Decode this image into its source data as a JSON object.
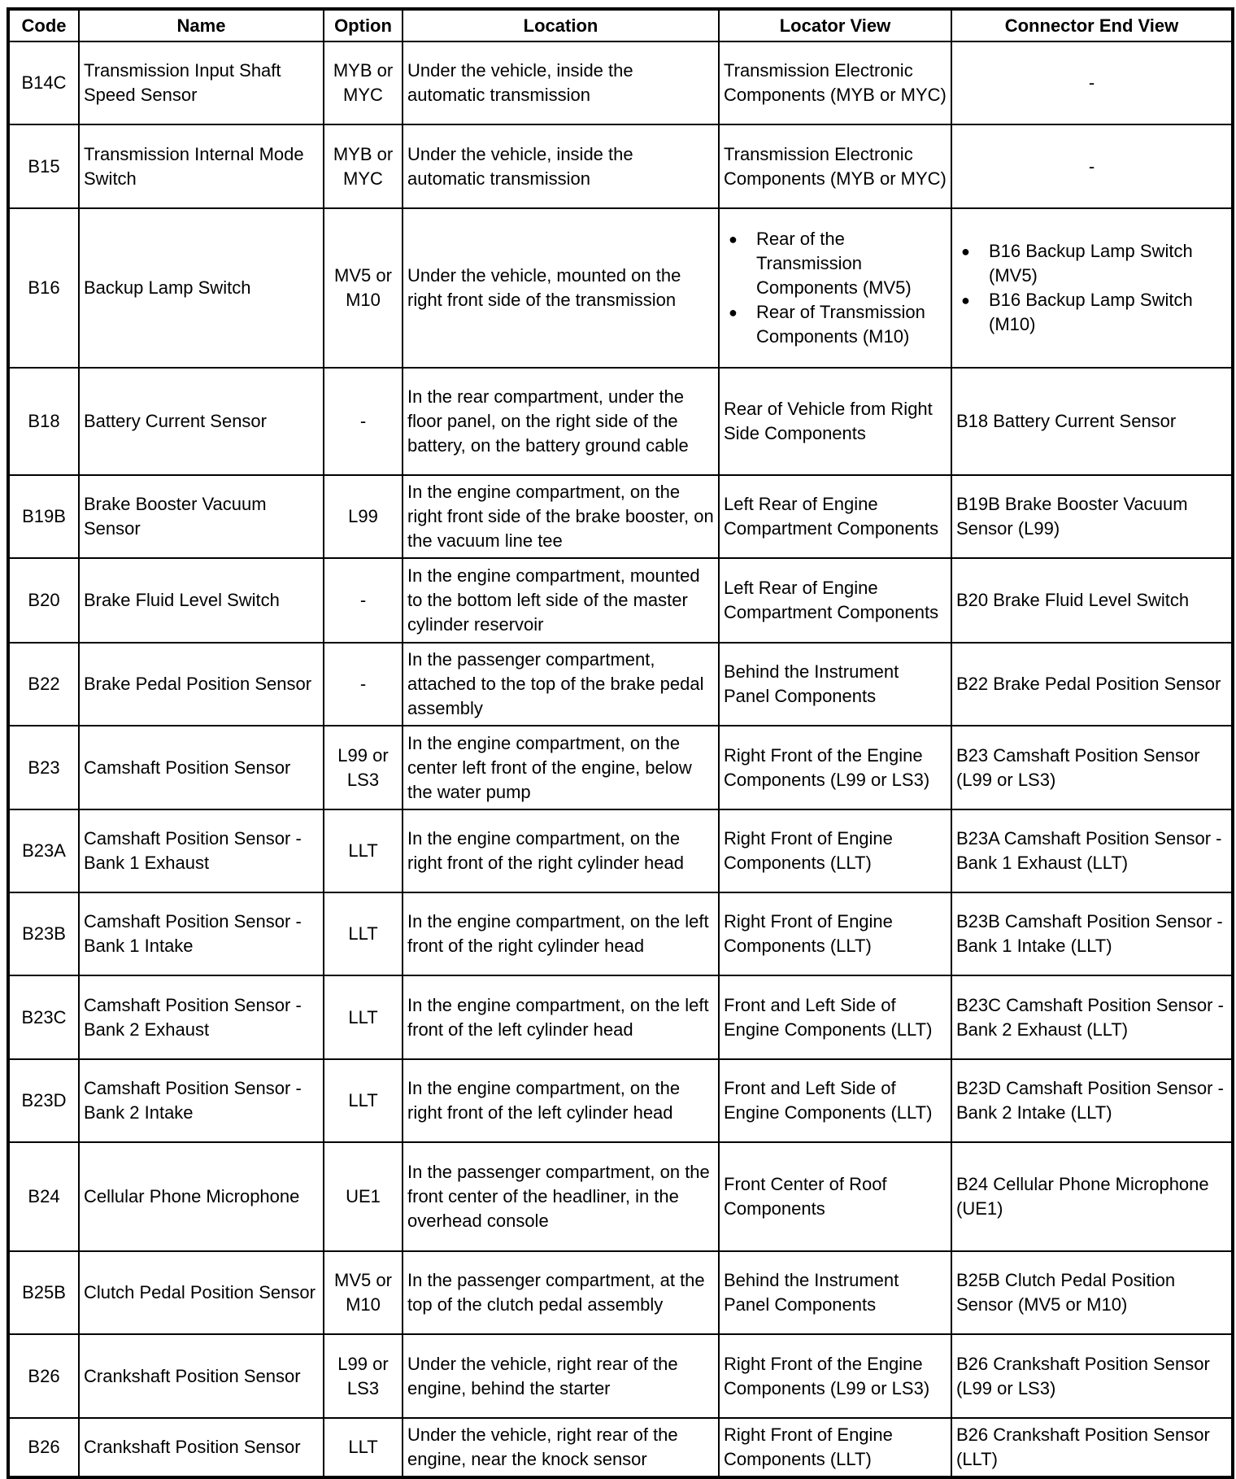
{
  "headers": [
    "Code",
    "Name",
    "Option",
    "Location",
    "Locator View",
    "Connector End View"
  ],
  "rows": [
    {
      "code": "B14C",
      "name": "Transmission Input Shaft Speed Sensor",
      "option": "MYB or MYC",
      "location": "Under the vehicle, inside the automatic transmission",
      "locator": [
        "Transmission Electronic Components (MYB or MYC)"
      ],
      "connector": [
        "-"
      ]
    },
    {
      "code": "B15",
      "name": "Transmission Internal Mode Switch",
      "option": "MYB or MYC",
      "location": "Under the vehicle, inside the automatic transmission",
      "locator": [
        "Transmission Electronic Components (MYB or MYC)"
      ],
      "connector": [
        "-"
      ]
    },
    {
      "code": "B16",
      "name": "Backup Lamp Switch",
      "option": "MV5 or M10",
      "location": "Under the vehicle, mounted on the right front side of the transmission",
      "locator": [
        "Rear of the Transmission Components (MV5)",
        "Rear of Transmission Components (M10)"
      ],
      "connector": [
        "B16 Backup Lamp Switch (MV5)",
        "B16 Backup Lamp Switch (M10)"
      ],
      "bullets": true
    },
    {
      "code": "B18",
      "name": "Battery Current Sensor",
      "option": "-",
      "location": "In the rear compartment, under the floor panel, on the right side of the battery, on the battery ground cable",
      "locator": [
        "Rear of Vehicle from Right Side Components"
      ],
      "connector": [
        "B18 Battery Current Sensor"
      ]
    },
    {
      "code": "B19B",
      "name": "Brake Booster Vacuum Sensor",
      "option": "L99",
      "location": "In the engine compartment, on the right front side of the brake booster, on the vacuum line tee",
      "locator": [
        "Left Rear of Engine Compartment Components"
      ],
      "connector": [
        "B19B Brake Booster Vacuum Sensor (L99)"
      ]
    },
    {
      "code": "B20",
      "name": "Brake Fluid Level Switch",
      "option": "-",
      "location": "In the engine compartment, mounted to the bottom left side of the master cylinder reservoir",
      "locator": [
        "Left Rear of Engine Compartment Components"
      ],
      "connector": [
        "B20 Brake Fluid Level Switch"
      ]
    },
    {
      "code": "B22",
      "name": "Brake Pedal Position Sensor",
      "option": "-",
      "location": "In the passenger compartment, attached to the top of the brake pedal assembly",
      "locator": [
        "Behind the Instrument Panel Components"
      ],
      "connector": [
        "B22 Brake Pedal Position Sensor"
      ]
    },
    {
      "code": "B23",
      "name": "Camshaft Position Sensor",
      "option": "L99 or LS3",
      "location": "In the engine compartment, on the center left front of the engine, below the water pump",
      "locator": [
        "Right Front of the Engine Components (L99 or LS3)"
      ],
      "connector": [
        "B23 Camshaft Position Sensor (L99 or LS3)"
      ]
    },
    {
      "code": "B23A",
      "name": "Camshaft Position Sensor - Bank 1 Exhaust",
      "option": "LLT",
      "location": "In the engine compartment, on the right front of the right cylinder head",
      "locator": [
        "Right Front of Engine Components (LLT)"
      ],
      "connector": [
        "B23A Camshaft Position Sensor - Bank 1 Exhaust (LLT)"
      ]
    },
    {
      "code": "B23B",
      "name": "Camshaft Position Sensor - Bank 1 Intake",
      "option": "LLT",
      "location": "In the engine compartment, on the left front of the right cylinder head",
      "locator": [
        "Right Front of Engine Components (LLT)"
      ],
      "connector": [
        "B23B Camshaft Position Sensor - Bank 1 Intake (LLT)"
      ]
    },
    {
      "code": "B23C",
      "name": "Camshaft Position Sensor - Bank 2 Exhaust",
      "option": "LLT",
      "location": "In the engine compartment, on the left front of the left cylinder head",
      "locator": [
        "Front and Left Side of Engine Components (LLT)"
      ],
      "connector": [
        "B23C Camshaft Position Sensor - Bank 2 Exhaust (LLT)"
      ]
    },
    {
      "code": "B23D",
      "name": "Camshaft Position Sensor - Bank 2 Intake",
      "option": "LLT",
      "location": "In the engine compartment, on the right front of the left cylinder head",
      "locator": [
        "Front and Left Side of Engine Components (LLT)"
      ],
      "connector": [
        "B23D Camshaft Position Sensor - Bank 2 Intake (LLT)"
      ]
    },
    {
      "code": "B24",
      "name": "Cellular Phone Microphone",
      "option": "UE1",
      "location": "In the passenger compartment, on the front center of the headliner, in the overhead console",
      "locator": [
        "Front Center of Roof Components"
      ],
      "connector": [
        "B24 Cellular Phone Microphone (UE1)"
      ]
    },
    {
      "code": "B25B",
      "name": "Clutch Pedal Position Sensor",
      "option": "MV5 or M10",
      "location": "In the passenger compartment, at the top of the clutch pedal assembly",
      "locator": [
        "Behind the Instrument Panel Components"
      ],
      "connector": [
        "B25B Clutch Pedal Position Sensor (MV5 or M10)"
      ]
    },
    {
      "code": "B26",
      "name": "Crankshaft Position Sensor",
      "option": "L99 or LS3",
      "location": "Under the vehicle, right rear of the engine, behind the starter",
      "locator": [
        "Right Front of the Engine Components (L99 or LS3)"
      ],
      "connector": [
        "B26 Crankshaft Position Sensor (L99 or LS3)"
      ]
    },
    {
      "code": "B26",
      "name": "Crankshaft Position Sensor",
      "option": "LLT",
      "location": "Under the vehicle, right rear of the engine, near the knock sensor",
      "locator": [
        "Right Front of Engine Components (LLT)"
      ],
      "connector": [
        "B26 Crankshaft Position Sensor (LLT)"
      ]
    }
  ]
}
